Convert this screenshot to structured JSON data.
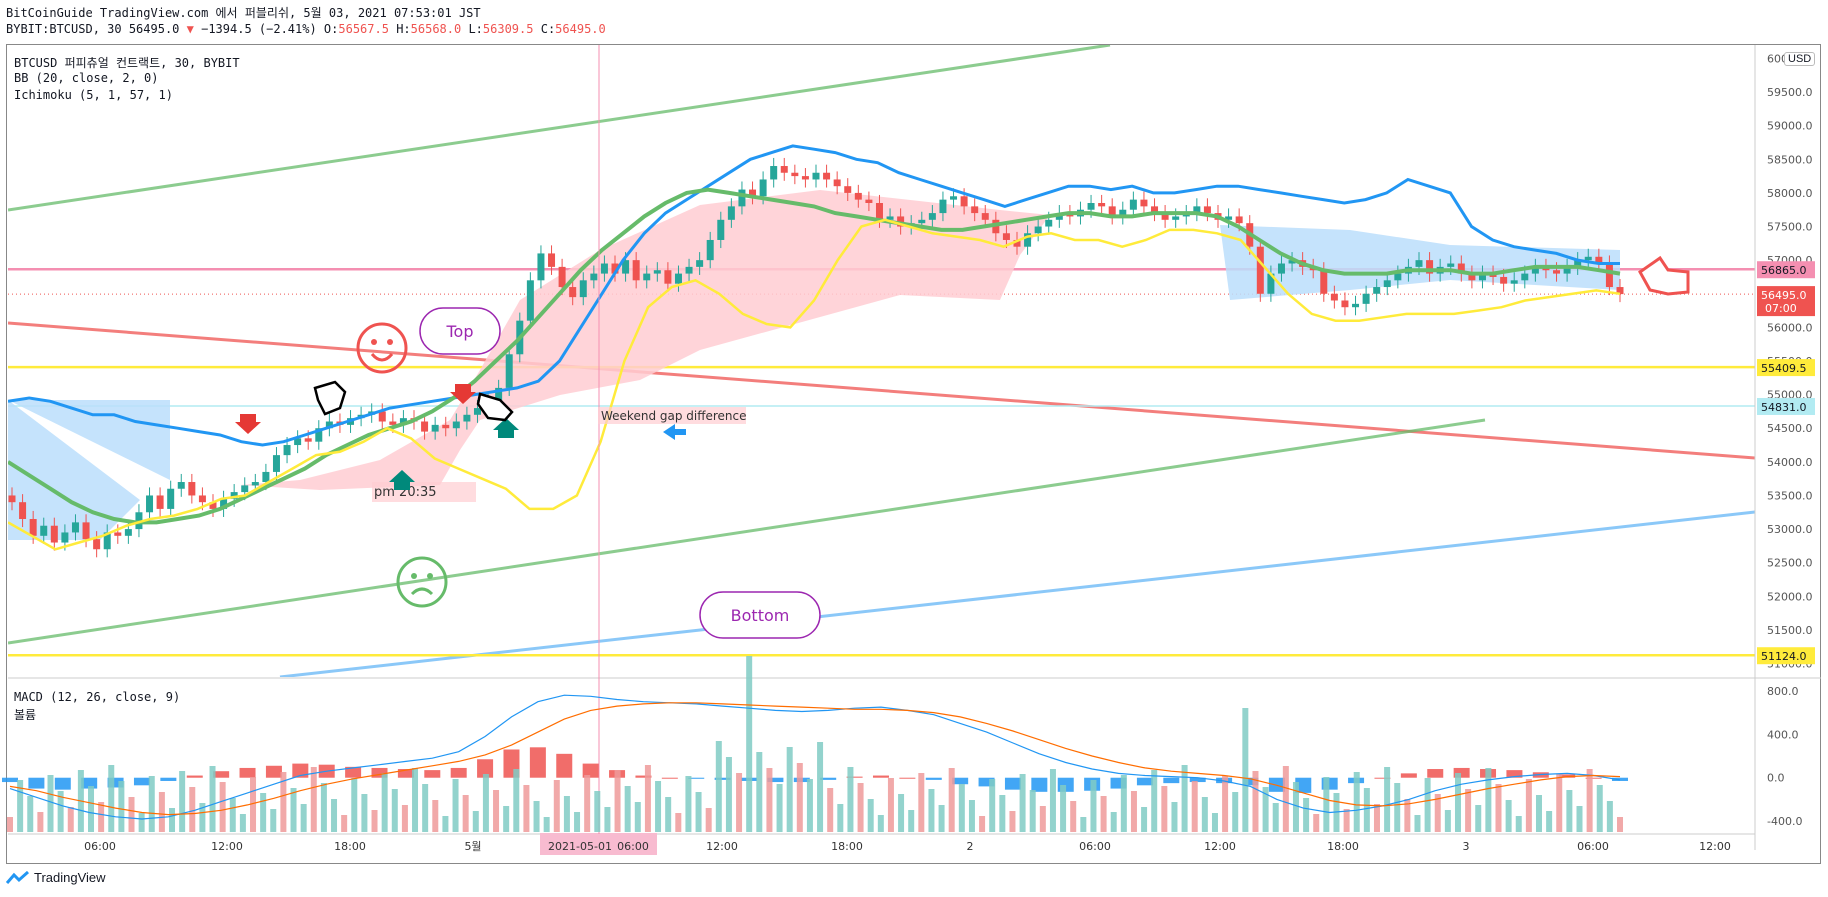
{
  "header": {
    "publisher": "BitCoinGuide TradingView.com 에서 퍼블리쉬, 5월 03, 2021 07:53:01 JST",
    "symbol_line": "BYBIT:BTCUSD, 30 56495.0",
    "change": "−1394.5 (−2.41%)",
    "o_label": "O:",
    "o": "56567.5",
    "h_label": "H:",
    "h": "56568.0",
    "l_label": "L:",
    "l": "56309.5",
    "c_label": "C:",
    "c": "56495.0"
  },
  "legend": {
    "title": "BTCUSD 퍼피츄얼 컨트랙트, 30, BYBIT",
    "bb": "BB (20, close, 2, 0)",
    "ichimoku": "Ichimoku (5, 1, 57, 1)",
    "macd": "MACD (12, 26, close, 9)",
    "volume": "볼륨"
  },
  "currency_button": "USD",
  "brand": "TradingView",
  "colors": {
    "up": "#26a69a",
    "down": "#ef5350",
    "bb": "#2196f3",
    "basis": "#66bb6a",
    "lagging": "#ffeb3b",
    "cloud_bull": "#ffcdd2",
    "cloud_bear": "#bbdefb"
  },
  "chart_data": [
    {
      "type": "candlestick",
      "panel": "price",
      "ylim": [
        50800,
        60200
      ],
      "y_ticks": [
        "60000.0",
        "59500.0",
        "59000.0",
        "58500.0",
        "58000.0",
        "57500.0",
        "57000.0",
        "56500.0",
        "56000.0",
        "55500.0",
        "55000.0",
        "54500.0",
        "54000.0",
        "53500.0",
        "53000.0",
        "52500.0",
        "52000.0",
        "51500.0",
        "51000.0"
      ],
      "x_ticks": [
        "06:00",
        "12:00",
        "18:00",
        "5월",
        "2021-05-01",
        "06:00",
        "12:00",
        "18:00",
        "2",
        "06:00",
        "12:00",
        "18:00",
        "3",
        "06:00",
        "12:00"
      ],
      "price_labels": [
        {
          "value": "56865.0",
          "color": "#f48fb1"
        },
        {
          "value": "56495.0",
          "sub": "07:00",
          "color": "#ef5350"
        },
        {
          "value": "55409.5",
          "color": "#ffeb3b"
        },
        {
          "value": "54831.0",
          "color": "#b2ebf2"
        },
        {
          "value": "51124.0",
          "color": "#ffeb3b"
        }
      ],
      "horizontal_lines": [
        56865,
        55409.5,
        54831,
        51124
      ],
      "annotations": [
        "Top",
        "Bottom",
        "Weekend gap difference",
        "pm 20:35"
      ],
      "closes": [
        53400,
        53150,
        52900,
        53050,
        52800,
        52950,
        53100,
        52850,
        52700,
        52950,
        52900,
        53000,
        53250,
        53500,
        53300,
        53600,
        53700,
        53500,
        53400,
        53300,
        53450,
        53550,
        53650,
        53700,
        53850,
        54100,
        54250,
        54350,
        54300,
        54500,
        54600,
        54550,
        54650,
        54700,
        54750,
        54600,
        54550,
        54650,
        54600,
        54450,
        54550,
        54500,
        54600,
        54700,
        54800,
        54900,
        55100,
        55600,
        56100,
        56700,
        57100,
        56900,
        56600,
        56450,
        56700,
        56800,
        56950,
        56800,
        57000,
        56700,
        56800,
        56850,
        56650,
        56800,
        56900,
        57000,
        57300,
        57600,
        57800,
        58050,
        57950,
        58200,
        58400,
        58300,
        58250,
        58200,
        58300,
        58200,
        58100,
        58000,
        57900,
        57850,
        57600,
        57650,
        57500,
        57550,
        57600,
        57700,
        57900,
        57950,
        57800,
        57700,
        57600,
        57400,
        57300,
        57200,
        57400,
        57500,
        57600,
        57700,
        57650,
        57750,
        57850,
        57800,
        57650,
        57750,
        57900,
        57800,
        57700,
        57600,
        57650,
        57700,
        57800,
        57700,
        57600,
        57650,
        57550,
        57200,
        56500,
        56800,
        56950,
        57000,
        56900,
        56850,
        56500,
        56400,
        56300,
        56350,
        56500,
        56600,
        56700,
        56800,
        56900,
        57000,
        56800,
        56900,
        56950,
        56800,
        56700,
        56800,
        56750,
        56650,
        56700,
        56800,
        56900,
        56850,
        56800,
        56900,
        57000,
        57050,
        56950,
        56600,
        56495
      ],
      "bb_upper": [
        54900,
        54950,
        54900,
        54800,
        54700,
        54700,
        54600,
        54550,
        54500,
        54450,
        54400,
        54300,
        54250,
        54300,
        54400,
        54500,
        54600,
        54700,
        54800,
        54850,
        54900,
        54950,
        55000,
        55050,
        55100,
        55200,
        55500,
        56000,
        56500,
        57000,
        57400,
        57700,
        57900,
        58100,
        58300,
        58500,
        58600,
        58700,
        58650,
        58600,
        58500,
        58450,
        58300,
        58200,
        58100,
        58000,
        57900,
        57800,
        57900,
        58000,
        58100,
        58100,
        58050,
        58100,
        58000,
        58000,
        58050,
        58100,
        58100,
        58050,
        58000,
        57950,
        57900,
        57850,
        57900,
        58000,
        58200,
        58100,
        58000,
        57500,
        57300,
        57200,
        57150,
        57100,
        57000,
        56950,
        56950
      ],
      "bb_basis": [
        54000,
        53800,
        53600,
        53400,
        53250,
        53150,
        53100,
        53100,
        53150,
        53200,
        53300,
        53450,
        53600,
        53750,
        53900,
        54100,
        54250,
        54400,
        54500,
        54600,
        54750,
        54950,
        55200,
        55500,
        55800,
        56150,
        56500,
        56850,
        57150,
        57400,
        57650,
        57850,
        58000,
        58050,
        58000,
        57950,
        57900,
        57850,
        57800,
        57700,
        57650,
        57600,
        57550,
        57500,
        57450,
        57450,
        57500,
        57550,
        57600,
        57650,
        57700,
        57700,
        57650,
        57650,
        57700,
        57700,
        57700,
        57650,
        57500,
        57300,
        57100,
        56950,
        56850,
        56800,
        56800,
        56800,
        56850,
        56850,
        56850,
        56800,
        56800,
        56850,
        56900,
        56900,
        56900,
        56850,
        56800
      ],
      "lagging": [
        53100,
        52900,
        52700,
        52800,
        52900,
        53050,
        53150,
        53200,
        53300,
        53450,
        53500,
        53700,
        53900,
        54100,
        54150,
        54300,
        54500,
        54350,
        54050,
        53900,
        53750,
        53600,
        53300,
        53300,
        53500,
        54300,
        55500,
        56300,
        56600,
        56700,
        56500,
        56200,
        56050,
        56000,
        56400,
        57000,
        57500,
        57600,
        57500,
        57400,
        57350,
        57300,
        57200,
        57350,
        57400,
        57300,
        57300,
        57200,
        57300,
        57450,
        57450,
        57400,
        57300,
        56900,
        56500,
        56200,
        56100,
        56100,
        56150,
        56200,
        56200,
        56200,
        56250,
        56300,
        56400,
        56450,
        56500,
        56550,
        56500
      ]
    },
    {
      "type": "bar+line",
      "panel": "macd",
      "ylim": [
        -500,
        900
      ],
      "y_ticks": [
        "800.0",
        "400.0",
        "0.0",
        "-400.0"
      ],
      "series": [
        {
          "name": "MACD",
          "values": [
            -100,
            -180,
            -260,
            -320,
            -360,
            -380,
            -360,
            -300,
            -220,
            -140,
            -60,
            20,
            60,
            90,
            120,
            150,
            180,
            240,
            380,
            560,
            700,
            760,
            750,
            720,
            700,
            690,
            680,
            660,
            640,
            620,
            610,
            620,
            640,
            650,
            620,
            580,
            500,
            420,
            320,
            220,
            140,
            80,
            40,
            20,
            10,
            0,
            -30,
            -80,
            -200,
            -280,
            -320,
            -300,
            -260,
            -200,
            -120,
            -60,
            -20,
            10,
            30,
            40,
            20,
            -20
          ]
        },
        {
          "name": "Signal",
          "values": [
            -80,
            -120,
            -180,
            -230,
            -280,
            -320,
            -340,
            -330,
            -300,
            -250,
            -190,
            -120,
            -60,
            -10,
            30,
            70,
            110,
            150,
            210,
            300,
            420,
            540,
            620,
            660,
            680,
            690,
            690,
            680,
            670,
            660,
            650,
            640,
            630,
            630,
            620,
            600,
            560,
            500,
            430,
            350,
            270,
            200,
            140,
            90,
            60,
            40,
            20,
            -10,
            -70,
            -140,
            -210,
            -250,
            -260,
            -240,
            -200,
            -150,
            -100,
            -60,
            -20,
            10,
            20,
            10
          ]
        },
        {
          "name": "Histogram",
          "values": [
            -40,
            -100,
            -110,
            -100,
            -90,
            -70,
            -30,
            20,
            60,
            90,
            110,
            130,
            120,
            100,
            90,
            80,
            70,
            90,
            170,
            260,
            280,
            220,
            130,
            70,
            20,
            0,
            -10,
            -20,
            -30,
            -40,
            -40,
            -20,
            10,
            20,
            0,
            -20,
            -60,
            -80,
            -110,
            -130,
            -130,
            -120,
            -100,
            -70,
            -50,
            -40,
            -50,
            -70,
            -130,
            -140,
            -110,
            -50,
            0,
            40,
            80,
            90,
            80,
            70,
            50,
            30,
            0,
            -30
          ]
        }
      ]
    }
  ]
}
